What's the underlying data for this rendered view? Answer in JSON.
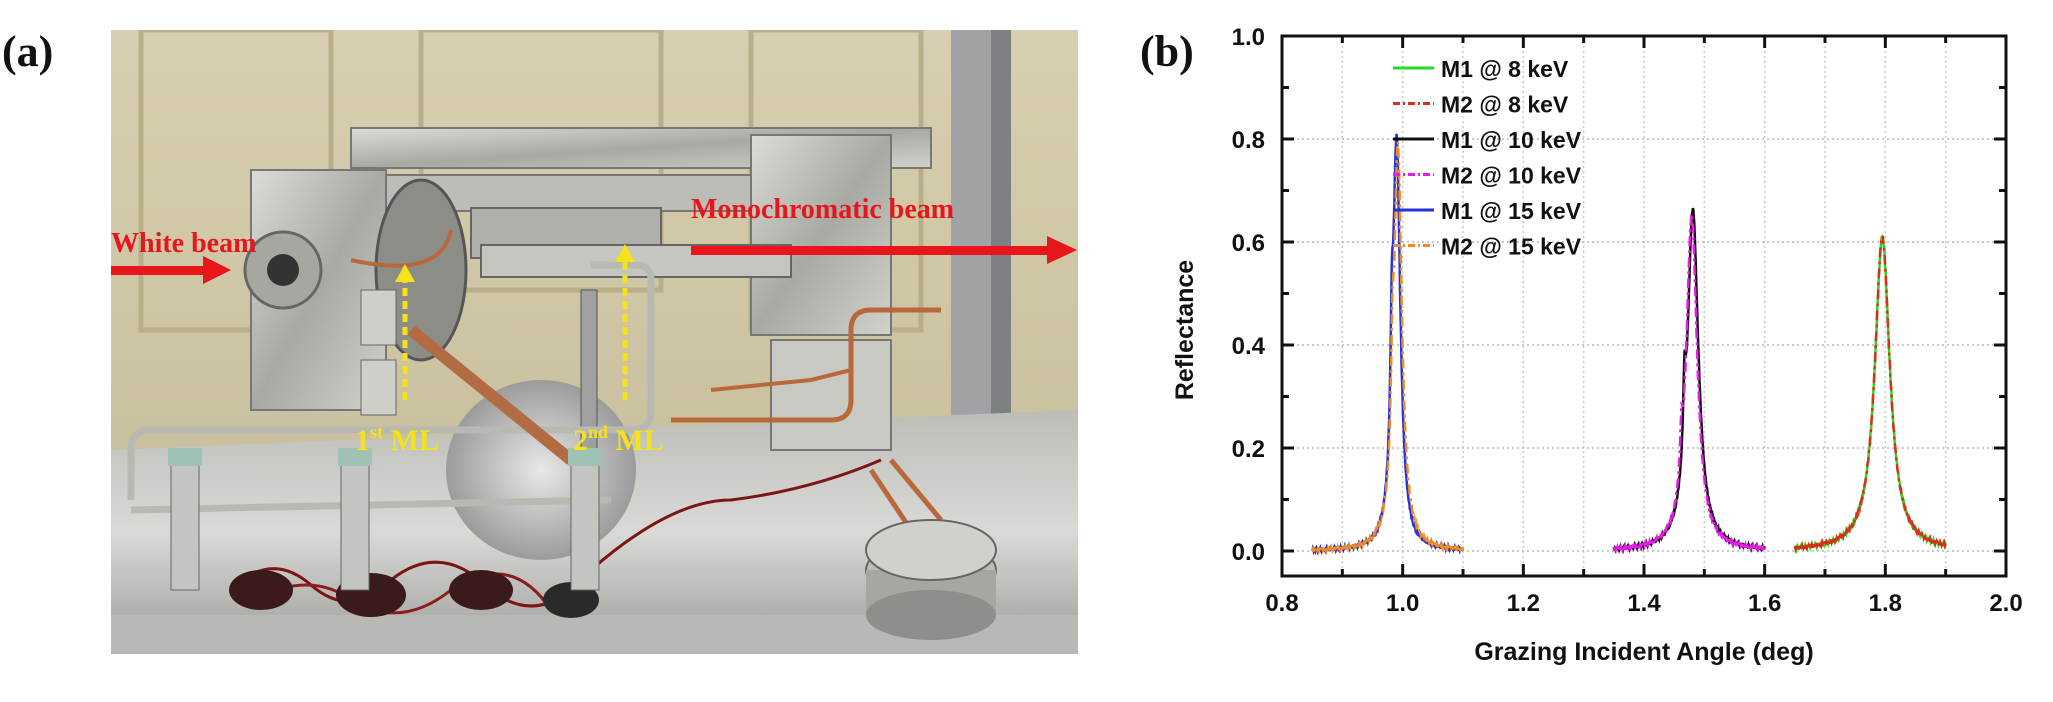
{
  "figure": {
    "panel_a": {
      "label": "(a)",
      "annotations": {
        "white_beam": "White beam",
        "mono_beam": "Monochromatic beam",
        "first_ml_num": "1",
        "first_ml_sup": "st",
        "first_ml_text": " ML",
        "second_ml_num": "2",
        "second_ml_sup": "nd",
        "second_ml_text": " ML"
      },
      "colors": {
        "beam_arrow": "#e8161a",
        "ml_arrow": "#f4e21a"
      }
    },
    "panel_b": {
      "label": "(b)"
    }
  },
  "chart_data": {
    "type": "line",
    "title": "",
    "xlabel": "Grazing Incident Angle (deg)",
    "ylabel": "Reflectance",
    "xlim": [
      0.8,
      2.0
    ],
    "ylim": [
      -0.05,
      1.0
    ],
    "xticks": [
      "0.8",
      "1.0",
      "1.2",
      "1.4",
      "1.6",
      "1.8",
      "2.0"
    ],
    "yticks": [
      "0.0",
      "0.2",
      "0.4",
      "0.6",
      "0.8",
      "1.0"
    ],
    "grid": true,
    "legend_position": "upper-left-center",
    "series": [
      {
        "name": "M1 @ 8 keV",
        "color": "#22dd22",
        "dash": "solid",
        "range": [
          1.65,
          1.9
        ],
        "peak_x": 1.795,
        "peak_y": 0.61,
        "fwhm": 0.03
      },
      {
        "name": "M2 @ 8 keV",
        "color": "#e02a1a",
        "dash": "dash-dot",
        "range": [
          1.65,
          1.9
        ],
        "peak_x": 1.795,
        "peak_y": 0.61,
        "fwhm": 0.03
      },
      {
        "name": "M1 @ 10 keV",
        "color": "#111111",
        "dash": "solid",
        "range": [
          1.35,
          1.6
        ],
        "peak_x": 1.481,
        "peak_y": 0.66,
        "fwhm": 0.022,
        "shoulder_x": 1.467,
        "shoulder_y": 0.18
      },
      {
        "name": "M2 @ 10 keV",
        "color": "#e81ce8",
        "dash": "dash-dot",
        "range": [
          1.35,
          1.6
        ],
        "peak_x": 1.479,
        "peak_y": 0.65,
        "fwhm": 0.022,
        "shoulder_x": 1.462,
        "shoulder_y": 0.14
      },
      {
        "name": "M1 @ 15 keV",
        "color": "#2233dd",
        "dash": "solid",
        "range": [
          0.85,
          1.1
        ],
        "peak_x": 0.99,
        "peak_y": 0.79,
        "fwhm": 0.015,
        "shoulder_x": 0.982,
        "shoulder_y": 0.24
      },
      {
        "name": "M2 @ 15 keV",
        "color": "#f08c1e",
        "dash": "dash-dot",
        "range": [
          0.85,
          1.1
        ],
        "peak_x": 0.992,
        "peak_y": 0.78,
        "fwhm": 0.016,
        "shoulder_x": 0.983,
        "shoulder_y": 0.21
      }
    ]
  }
}
